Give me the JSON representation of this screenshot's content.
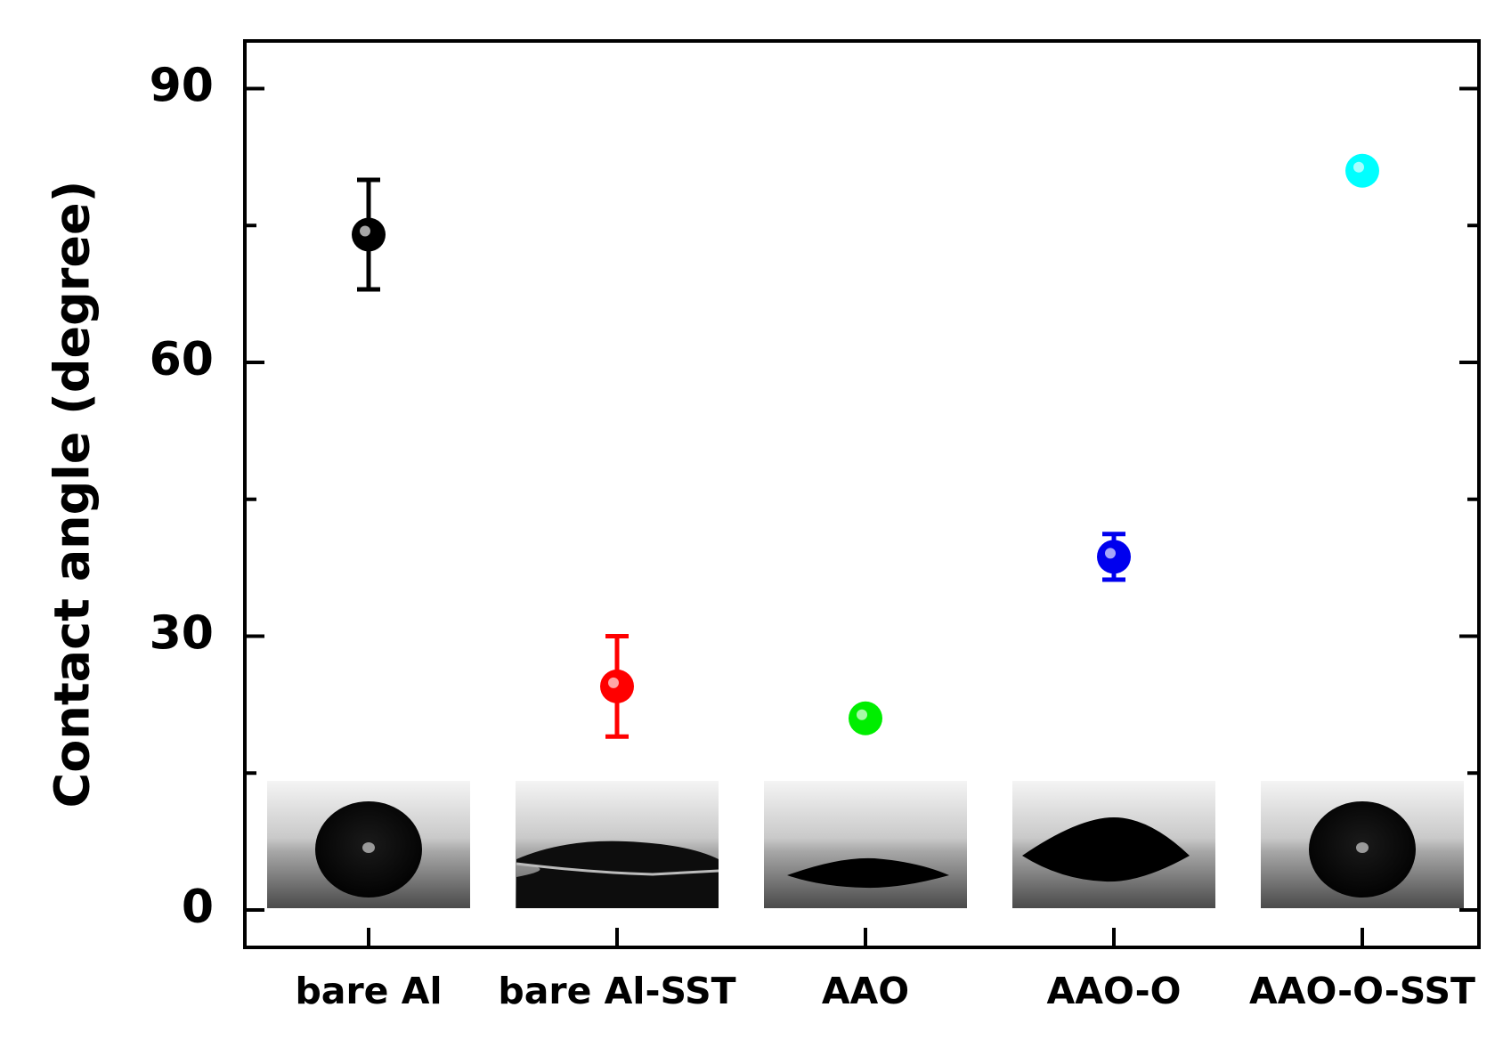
{
  "chart_data": {
    "type": "scatter",
    "title": "",
    "xlabel": "",
    "ylabel": "Contact angle (degree)",
    "categories": [
      "bare Al",
      "bare Al-SST",
      "AAO",
      "AAO-O",
      "AAO-O-SST"
    ],
    "y_ticks": [
      "0",
      "30",
      "60",
      "90"
    ],
    "ylim": [
      -5,
      95
    ],
    "grid": false,
    "legend": "none",
    "points": [
      {
        "category": "bare Al",
        "value": 74,
        "error": 6,
        "color": "#000000"
      },
      {
        "category": "bare Al-SST",
        "value": 24.5,
        "error": 5.5,
        "color": "#ff0000"
      },
      {
        "category": "AAO",
        "value": 21,
        "error": 0,
        "color": "#00ee00"
      },
      {
        "category": "AAO-O",
        "value": 38.7,
        "error": 2.5,
        "color": "#0000ee"
      },
      {
        "category": "AAO-O-SST",
        "value": 81,
        "error": 0,
        "color": "#00ffff"
      }
    ],
    "insets": [
      {
        "category": "bare Al",
        "drop": "sphere"
      },
      {
        "category": "bare Al-SST",
        "drop": "flat"
      },
      {
        "category": "AAO",
        "drop": "flat"
      },
      {
        "category": "AAO-O",
        "drop": "lens"
      },
      {
        "category": "AAO-O-SST",
        "drop": "sphere"
      }
    ]
  }
}
